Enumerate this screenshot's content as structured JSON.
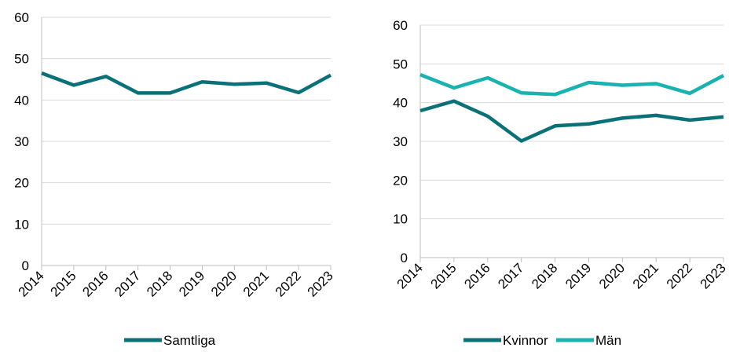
{
  "chart_data": [
    {
      "type": "line",
      "categories": [
        "2014",
        "2015",
        "2016",
        "2017",
        "2018",
        "2019",
        "2020",
        "2021",
        "2022",
        "2023"
      ],
      "series": [
        {
          "name": "Samtliga",
          "color": "#0b7178",
          "values": [
            46.5,
            43.6,
            45.7,
            41.7,
            41.7,
            44.4,
            43.8,
            44.1,
            41.8,
            46.0
          ]
        }
      ],
      "ylim": [
        0,
        60
      ],
      "yticks": [
        "0",
        "10",
        "20",
        "30",
        "40",
        "50",
        "60"
      ],
      "grid": true,
      "legend": "bottom"
    },
    {
      "type": "line",
      "categories": [
        "2014",
        "2015",
        "2016",
        "2017",
        "2018",
        "2019",
        "2020",
        "2021",
        "2022",
        "2023"
      ],
      "series": [
        {
          "name": "Kvinnor",
          "color": "#0b7178",
          "values": [
            37.9,
            40.4,
            36.5,
            30.1,
            34.0,
            34.5,
            36.0,
            36.7,
            35.5,
            36.3
          ]
        },
        {
          "name": "Män",
          "color": "#18b3b0",
          "values": [
            47.2,
            43.8,
            46.4,
            42.5,
            42.1,
            45.2,
            44.5,
            44.9,
            42.4,
            47.0
          ]
        }
      ],
      "ylim": [
        0,
        60
      ],
      "yticks": [
        "0",
        "10",
        "20",
        "30",
        "40",
        "50",
        "60"
      ],
      "grid": true,
      "legend": "bottom"
    }
  ]
}
